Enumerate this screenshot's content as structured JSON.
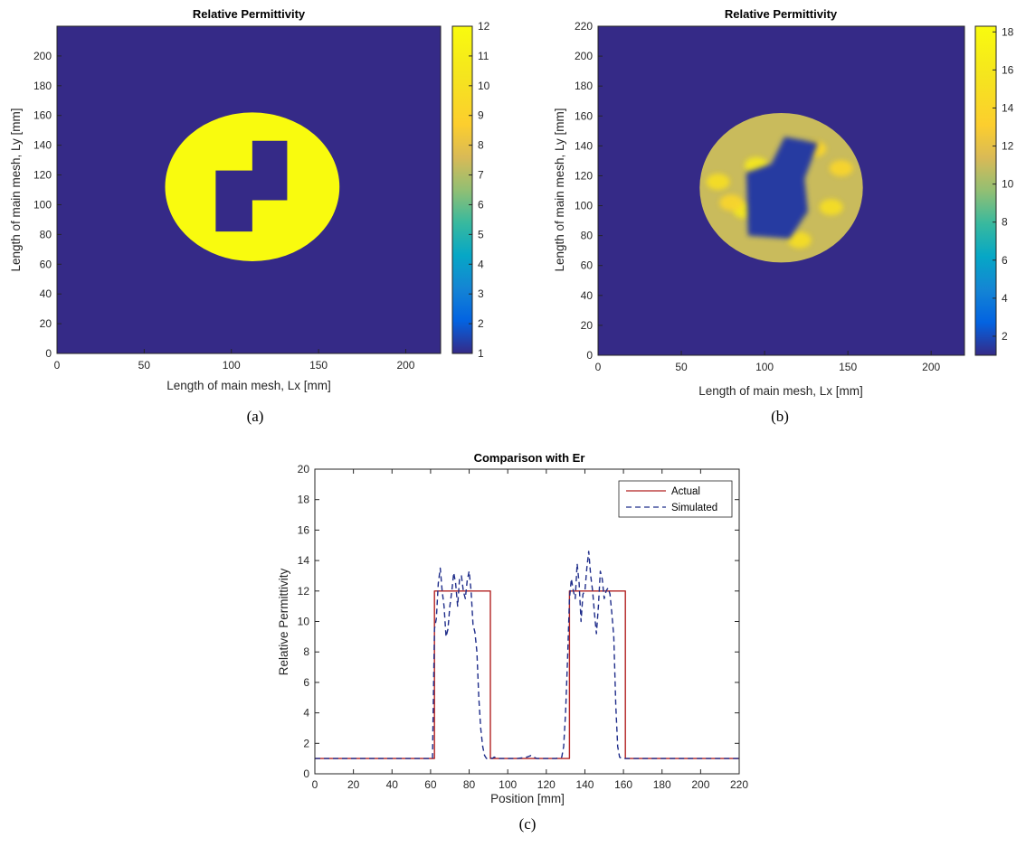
{
  "chart_data": [
    {
      "type": "heatmap",
      "panel_caption": "(a)",
      "title": "Relative Permittivity",
      "xlabel": "Length of main mesh, Lx [mm]",
      "ylabel": "Length of main mesh, Ly [mm]",
      "xlim": [
        0,
        220
      ],
      "ylim": [
        0,
        220
      ],
      "xticks": [
        0,
        50,
        100,
        150,
        200
      ],
      "yticks": [
        0,
        20,
        40,
        60,
        80,
        100,
        120,
        140,
        160,
        180,
        200
      ],
      "background_value": 1,
      "circle": {
        "center_x": 112,
        "center_y": 112,
        "radius_x": 50,
        "radius_y": 50,
        "value": 12
      },
      "cutout_value": 1,
      "cutout_polygon": [
        [
          91,
          82
        ],
        [
          112,
          82
        ],
        [
          112,
          103
        ],
        [
          132,
          103
        ],
        [
          132,
          143
        ],
        [
          112,
          143
        ],
        [
          112,
          123
        ],
        [
          91,
          123
        ]
      ],
      "colorbar": {
        "min": 1,
        "max": 12,
        "ticks": [
          1,
          2,
          3,
          4,
          5,
          6,
          7,
          8,
          9,
          10,
          11,
          12
        ]
      }
    },
    {
      "type": "heatmap",
      "panel_caption": "(b)",
      "title": "Relative Permittivity",
      "xlabel": "Length of main mesh, Lx [mm]",
      "ylabel": "Length of main mesh, Ly [mm]",
      "xlim": [
        0,
        220
      ],
      "ylim": [
        0,
        220
      ],
      "xticks": [
        0,
        50,
        100,
        150,
        200
      ],
      "yticks": [
        0,
        20,
        40,
        60,
        80,
        100,
        120,
        140,
        160,
        180,
        200,
        220
      ],
      "background_value": 1,
      "circle": {
        "center_x": 110,
        "center_y": 112,
        "radius_x": 49,
        "radius_y": 50,
        "value": 11
      },
      "cutout_value": 1.5,
      "cutout_polygon": [
        [
          90,
          80
        ],
        [
          115,
          78
        ],
        [
          126,
          96
        ],
        [
          124,
          118
        ],
        [
          132,
          142
        ],
        [
          112,
          146
        ],
        [
          104,
          128
        ],
        [
          89,
          122
        ]
      ],
      "hotspots": [
        {
          "x": 116,
          "y": 95,
          "value": 17
        },
        {
          "x": 95,
          "y": 127,
          "value": 16
        },
        {
          "x": 88,
          "y": 97,
          "value": 16
        },
        {
          "x": 72,
          "y": 116,
          "value": 15
        },
        {
          "x": 140,
          "y": 99,
          "value": 15
        },
        {
          "x": 146,
          "y": 125,
          "value": 14
        },
        {
          "x": 80,
          "y": 102,
          "value": 14
        },
        {
          "x": 121,
          "y": 77,
          "value": 15
        },
        {
          "x": 130,
          "y": 138,
          "value": 14
        }
      ],
      "colorbar": {
        "min": 1,
        "max": 18.3,
        "ticks": [
          2,
          4,
          6,
          8,
          10,
          12,
          14,
          16,
          18
        ]
      }
    },
    {
      "type": "line",
      "panel_caption": "(c)",
      "title": "Comparison with Er",
      "xlabel": "Position [mm]",
      "ylabel": "Relative Permittivity",
      "xlim": [
        0,
        220
      ],
      "ylim": [
        0,
        20
      ],
      "xticks": [
        0,
        20,
        40,
        60,
        80,
        100,
        120,
        140,
        160,
        180,
        200,
        220
      ],
      "yticks": [
        0,
        2,
        4,
        6,
        8,
        10,
        12,
        14,
        16,
        18,
        20
      ],
      "legend_position": "top-right",
      "series": [
        {
          "name": "Actual",
          "color": "#b22222",
          "style": "solid",
          "x": [
            0,
            62,
            62,
            91,
            91,
            132,
            132,
            161,
            161,
            220
          ],
          "y": [
            1,
            1,
            12,
            12,
            1,
            1,
            12,
            12,
            1,
            1
          ]
        },
        {
          "name": "Simulated",
          "color": "#1f2d8a",
          "style": "dashed",
          "x": [
            0,
            61,
            62,
            63,
            64,
            65,
            66,
            67,
            68,
            69,
            70,
            71,
            72,
            73,
            74,
            75,
            76,
            77,
            78,
            79,
            80,
            81,
            82,
            83,
            84,
            85,
            86,
            87,
            88,
            89,
            90,
            91,
            92,
            93,
            95,
            100,
            105,
            110,
            112,
            115,
            120,
            125,
            128,
            129,
            130,
            131,
            132,
            133,
            134,
            135,
            136,
            137,
            138,
            139,
            140,
            141,
            142,
            143,
            144,
            145,
            146,
            147,
            148,
            149,
            150,
            151,
            152,
            153,
            154,
            155,
            156,
            157,
            158,
            159,
            160,
            161,
            162,
            163,
            165,
            220
          ],
          "y": [
            1,
            1,
            9.5,
            10.2,
            12.5,
            13.5,
            12.0,
            11.0,
            9.0,
            9.5,
            11.0,
            12.0,
            13.2,
            12.5,
            11.0,
            12.8,
            13.0,
            12.0,
            11.5,
            12.7,
            13.3,
            12.0,
            9.8,
            9.3,
            8.0,
            5.0,
            3.0,
            1.8,
            1.2,
            1.0,
            1.0,
            1.05,
            1.0,
            1.1,
            1.0,
            1.0,
            1.0,
            1.1,
            1.2,
            1.0,
            1.0,
            1.0,
            1.1,
            1.8,
            4.0,
            7.5,
            11.5,
            12.8,
            12.0,
            11.5,
            13.8,
            12.5,
            10.0,
            11.8,
            12.0,
            13.5,
            14.6,
            13.0,
            12.0,
            10.5,
            9.2,
            11.0,
            13.3,
            12.8,
            11.5,
            12.0,
            12.2,
            11.8,
            10.5,
            9.0,
            4.5,
            1.8,
            1.1,
            1.0,
            1.0,
            1.0,
            1.0,
            1.0,
            1.0,
            1.0
          ]
        }
      ]
    }
  ]
}
